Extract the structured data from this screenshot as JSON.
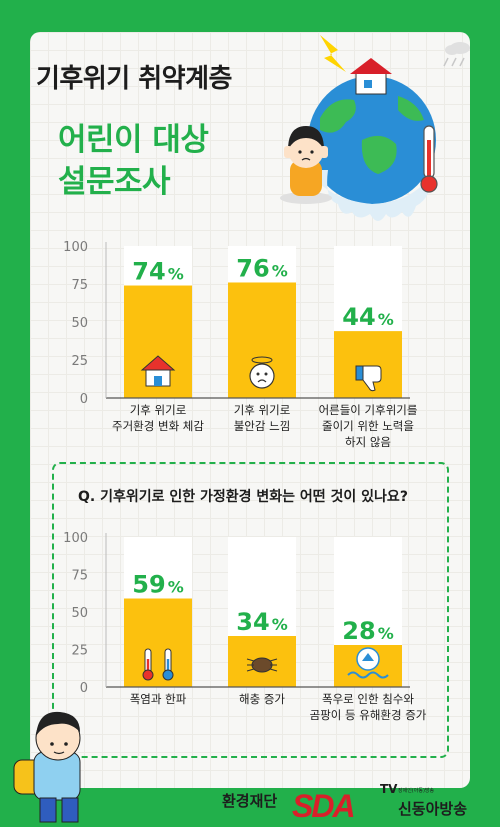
{
  "header": {
    "title_line1": "기후위기 취약계층",
    "title_line2": "어린이 대상",
    "title_line3": "설문조사"
  },
  "question": "Q. 기후위기로 인한 가정환경 변화는 어떤 것이 있나요?",
  "footer": {
    "brand1": "환경재단",
    "brand2_logo": "SDA",
    "brand2_tv": "TV",
    "brand2_small": "장애인(아동)방송",
    "brand2_name": "신동아방송"
  },
  "colors": {
    "green": "#22b04b",
    "bar": "#fcc10e",
    "bar_bg": "#ffffff",
    "axis": "#7a7a7a"
  },
  "chart_data": [
    {
      "type": "bar",
      "categories": [
        [
          "기후 위기로",
          "주거환경 변화 체감"
        ],
        [
          "기후 위기로",
          "불안감 느낌"
        ],
        [
          "어른들이 기후위기를",
          "줄이기 위한 노력을",
          "하지 않음"
        ]
      ],
      "values": [
        74,
        76,
        44
      ],
      "value_labels": [
        [
          "74",
          "%"
        ],
        [
          "76",
          "%"
        ],
        [
          "44",
          "%"
        ]
      ],
      "icons": [
        "house-heat-icon",
        "anxious-face-icon",
        "thumbs-down-icon"
      ],
      "yticks": [
        "100",
        "75",
        "50",
        "25",
        "0"
      ],
      "ylim": [
        0,
        100
      ],
      "grid": false
    },
    {
      "type": "bar",
      "categories": [
        [
          "폭염과 한파"
        ],
        [
          "해충 증가"
        ],
        [
          "폭우로 인한 침수와",
          "곰팡이 등 유해환경 증가"
        ]
      ],
      "values": [
        59,
        34,
        28
      ],
      "value_labels": [
        [
          "59",
          "%"
        ],
        [
          "34",
          "%"
        ],
        [
          "28",
          "%"
        ]
      ],
      "icons": [
        "thermometers-icon",
        "bug-icon",
        "flood-house-icon"
      ],
      "yticks": [
        "100",
        "75",
        "50",
        "25",
        "0"
      ],
      "ylim": [
        0,
        100
      ],
      "grid": false
    }
  ]
}
